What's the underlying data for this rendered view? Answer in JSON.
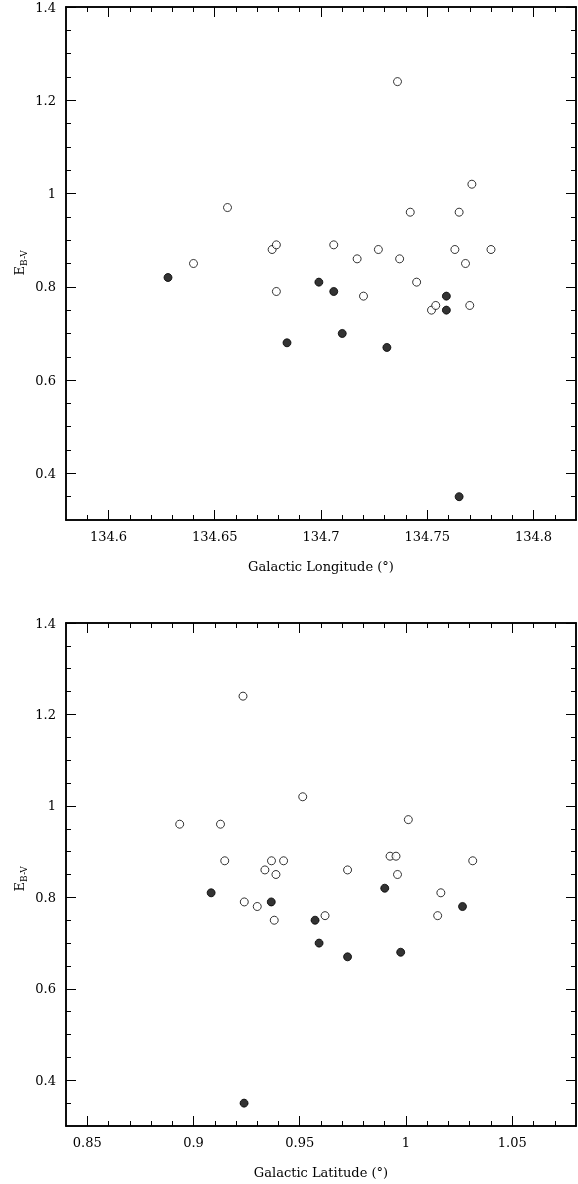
{
  "chart_data": [
    {
      "type": "scatter",
      "xlabel": "Galactic Longitude (°)",
      "ylabel": "E$_{B-V}$",
      "marker": "circle",
      "grid": false,
      "xlim": [
        134.58,
        134.82
      ],
      "ylim": [
        0.3,
        1.4
      ],
      "xticks": [
        {
          "value": 134.59,
          "label": null
        },
        134.6,
        {
          "value": 134.61,
          "label": null
        },
        {
          "value": 134.62,
          "label": null
        },
        {
          "value": 134.63,
          "label": null
        },
        {
          "value": 134.64,
          "label": null
        },
        134.65,
        {
          "value": 134.66,
          "label": null
        },
        {
          "value": 134.67,
          "label": null
        },
        {
          "value": 134.68,
          "label": null
        },
        {
          "value": 134.69,
          "label": null
        },
        134.7,
        {
          "value": 134.71,
          "label": null
        },
        {
          "value": 134.72,
          "label": null
        },
        {
          "value": 134.73,
          "label": null
        },
        {
          "value": 134.74,
          "label": null
        },
        134.75,
        {
          "value": 134.76,
          "label": null
        },
        {
          "value": 134.77,
          "label": null
        },
        {
          "value": 134.78,
          "label": null
        },
        {
          "value": 134.79,
          "label": null
        },
        134.8,
        {
          "value": 134.81,
          "label": null
        }
      ],
      "yticks": [
        {
          "value": 0.35,
          "label": null
        },
        0.4,
        {
          "value": 0.45,
          "label": null
        },
        {
          "value": 0.5,
          "label": null
        },
        {
          "value": 0.55,
          "label": null
        },
        0.6,
        {
          "value": 0.65,
          "label": null
        },
        {
          "value": 0.7,
          "label": null
        },
        {
          "value": 0.75,
          "label": null
        },
        0.8,
        {
          "value": 0.85,
          "label": null
        },
        {
          "value": 0.9,
          "label": null
        },
        {
          "value": 0.95,
          "label": null
        },
        1,
        {
          "value": 1.05,
          "label": null
        },
        {
          "value": 1.1,
          "label": null
        },
        {
          "value": 1.15,
          "label": null
        },
        1.2,
        {
          "value": 1.25,
          "label": null
        },
        {
          "value": 1.3,
          "label": null
        },
        {
          "value": 1.35,
          "label": null
        },
        1.4
      ],
      "series": [
        {
          "color": "#ffffff",
          "x": [
            134.64,
            134.656,
            134.677,
            134.679,
            134.679,
            134.706,
            134.717,
            134.72,
            134.727,
            134.736,
            134.737,
            134.742,
            134.745,
            134.752,
            134.754,
            134.763,
            134.765,
            134.768,
            134.77,
            134.771,
            134.78
          ],
          "values": [
            0.85,
            0.97,
            0.88,
            0.89,
            0.79,
            0.89,
            0.86,
            0.78,
            0.88,
            1.24,
            0.86,
            0.96,
            0.81,
            0.75,
            0.76,
            0.88,
            0.96,
            0.85,
            0.76,
            1.02,
            0.88
          ]
        },
        {
          "color": "#000000",
          "x": [
            134.628,
            134.684,
            134.699,
            134.706,
            134.71,
            134.731,
            134.759,
            134.759,
            134.765
          ],
          "values": [
            0.82,
            0.68,
            0.81,
            0.79,
            0.7,
            0.67,
            0.75,
            0.78,
            0.35
          ]
        }
      ]
    },
    {
      "type": "scatter",
      "xlabel": "Galactic Latitude (°)",
      "ylabel": "E$_{B-V}$",
      "marker": "circle",
      "grid": false,
      "xlim": [
        0.84,
        1.08
      ],
      "ylim": [
        0.3,
        1.4
      ],
      "xticks": [
        0.85,
        {
          "value": 0.86,
          "label": null
        },
        {
          "value": 0.87,
          "label": null
        },
        {
          "value": 0.88,
          "label": null
        },
        {
          "value": 0.89,
          "label": null
        },
        0.9,
        {
          "value": 0.91,
          "label": null
        },
        {
          "value": 0.92,
          "label": null
        },
        {
          "value": 0.93,
          "label": null
        },
        {
          "value": 0.94,
          "label": null
        },
        0.95,
        {
          "value": 0.96,
          "label": null
        },
        {
          "value": 0.97,
          "label": null
        },
        {
          "value": 0.98,
          "label": null
        },
        {
          "value": 0.99,
          "label": null
        },
        1,
        {
          "value": 1.01,
          "label": null
        },
        {
          "value": 1.02,
          "label": null
        },
        {
          "value": 1.03,
          "label": null
        },
        {
          "value": 1.04,
          "label": null
        },
        1.05,
        {
          "value": 1.06,
          "label": null
        },
        {
          "value": 1.07,
          "label": null
        }
      ],
      "yticks": [
        {
          "value": 0.35,
          "label": null
        },
        0.4,
        {
          "value": 0.45,
          "label": null
        },
        {
          "value": 0.5,
          "label": null
        },
        {
          "value": 0.55,
          "label": null
        },
        0.6,
        {
          "value": 0.65,
          "label": null
        },
        {
          "value": 0.7,
          "label": null
        },
        {
          "value": 0.75,
          "label": null
        },
        0.8,
        {
          "value": 0.85,
          "label": null
        },
        {
          "value": 0.9,
          "label": null
        },
        {
          "value": 0.95,
          "label": null
        },
        1,
        {
          "value": 1.05,
          "label": null
        },
        {
          "value": 1.1,
          "label": null
        },
        {
          "value": 1.15,
          "label": null
        },
        1.2,
        {
          "value": 1.25,
          "label": null
        },
        {
          "value": 1.3,
          "label": null
        },
        {
          "value": 1.35,
          "label": null
        },
        1.4
      ],
      "series": [
        {
          "color": "#ffffff",
          "x": [
            0.8935,
            0.9127,
            0.9147,
            0.9233,
            0.9239,
            0.93,
            0.9336,
            0.9367,
            0.9388,
            0.938,
            0.9424,
            0.9514,
            0.9619,
            0.9725,
            0.9925,
            0.9953,
            0.996,
            1.0011,
            1.0149,
            1.0164,
            1.0314
          ],
          "values": [
            0.96,
            0.96,
            0.88,
            1.24,
            0.79,
            0.78,
            0.86,
            0.88,
            0.85,
            0.75,
            0.88,
            1.02,
            0.76,
            0.86,
            0.89,
            0.89,
            0.85,
            0.97,
            0.76,
            0.81,
            0.88
          ]
        },
        {
          "color": "#000000",
          "x": [
            0.9083,
            0.9238,
            0.9366,
            0.9572,
            0.9591,
            0.9725,
            0.99,
            0.9975,
            1.0266
          ],
          "values": [
            0.81,
            0.35,
            0.79,
            0.75,
            0.7,
            0.67,
            0.82,
            0.68,
            0.78
          ]
        }
      ]
    }
  ]
}
